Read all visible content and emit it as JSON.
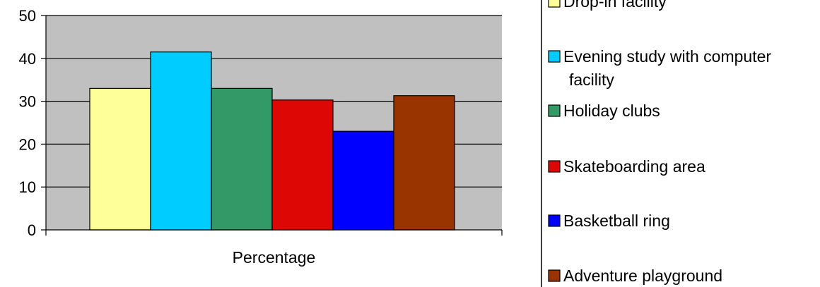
{
  "chart_data": {
    "type": "bar",
    "title": "",
    "xlabel": "Percentage",
    "ylabel": "",
    "categories": [
      "Percentage"
    ],
    "ylim": [
      0,
      50
    ],
    "yticks": [
      0,
      10,
      20,
      30,
      40,
      50
    ],
    "grid": true,
    "plot_background": "#c0c0c0",
    "legend_position": "right",
    "series": [
      {
        "name": "Drop-in facility",
        "values": [
          33
        ],
        "color": "#ffff99"
      },
      {
        "name": "Evening study with computer facility",
        "values": [
          41.5
        ],
        "color": "#00ccff"
      },
      {
        "name": "Holiday clubs",
        "values": [
          33
        ],
        "color": "#339966"
      },
      {
        "name": "Skateboarding area",
        "values": [
          30.3
        ],
        "color": "#dd0806"
      },
      {
        "name": "Basketball ring",
        "values": [
          23
        ],
        "color": "#0000ff"
      },
      {
        "name": "Adventure playground",
        "values": [
          31.3
        ],
        "color": "#993300"
      }
    ]
  }
}
